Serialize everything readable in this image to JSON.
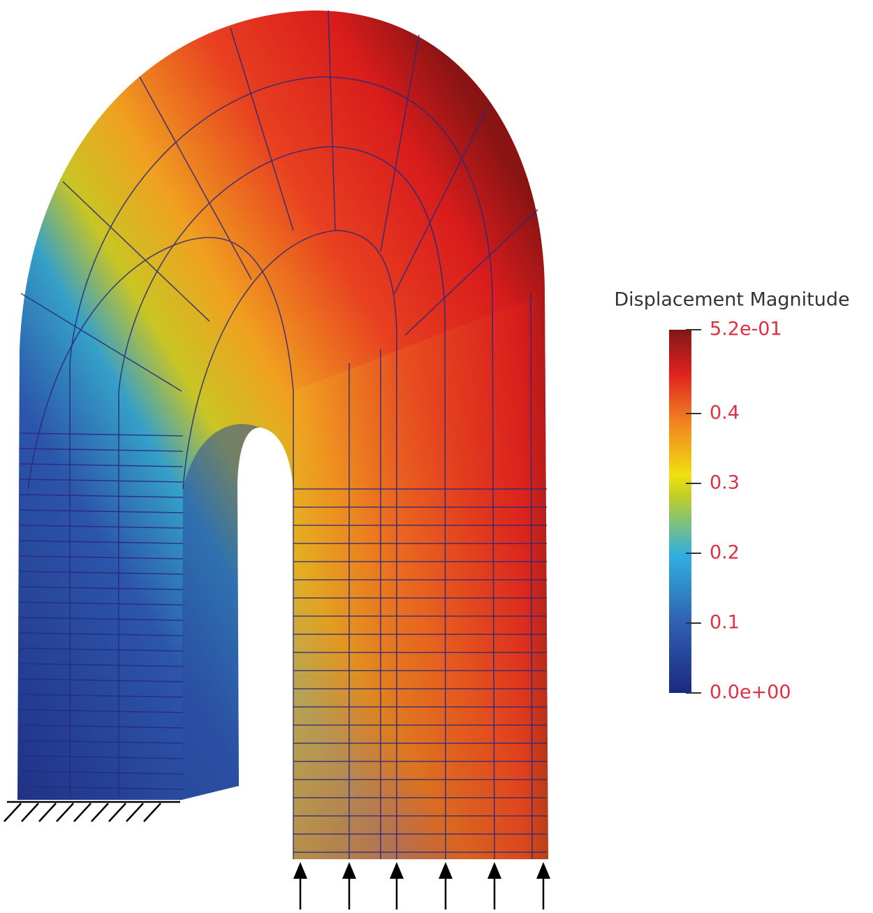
{
  "colorbar": {
    "title": "Displacement Magnitude",
    "range": [
      0,
      0.52
    ],
    "ticks": [
      {
        "value": 0.52,
        "label": "5.2e-01"
      },
      0.4,
      0.3,
      0.2,
      0.1,
      {
        "value": 0,
        "label": "0.0e+00"
      }
    ]
  }
}
